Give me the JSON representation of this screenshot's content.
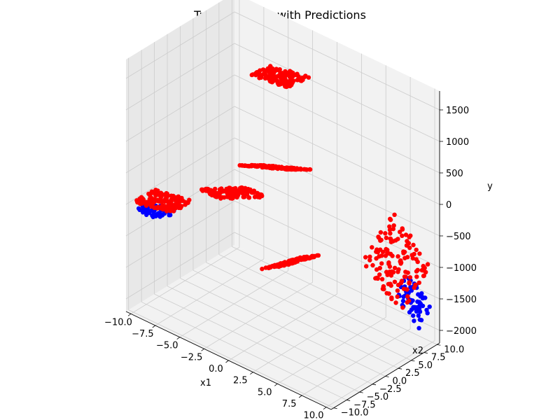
{
  "chart_data": {
    "type": "scatter",
    "projection": "3d",
    "title": "True Test Data with Predictions",
    "xlabel": "x1",
    "ylabel": "x2",
    "zlabel": "y",
    "xlim": [
      -10.5,
      10.5
    ],
    "ylim": [
      -10.5,
      10.5
    ],
    "zlim": [
      -2200,
      1800
    ],
    "x_ticks": [
      "−10.0",
      "−7.5",
      "−5.0",
      "−2.5",
      "0.0",
      "2.5",
      "5.0",
      "7.5",
      "10.0"
    ],
    "y_ticks": [
      "−10.0",
      "−7.5",
      "−5.0",
      "−2.5",
      "0.0",
      "2.5",
      "5.0",
      "7.5",
      "10.0"
    ],
    "z_ticks": [
      "−2000",
      "−1500",
      "−1000",
      "−500",
      "0",
      "500",
      "1000",
      "1500"
    ],
    "grid": true,
    "colors": {
      "true_data": "#0000ff",
      "predictions": "#ff0000",
      "pane": "#f2f2f2",
      "pane_side": "#e8e8e8",
      "grid": "#cccccc"
    },
    "series": [
      {
        "role": "true-test-data",
        "color": "#0000ff",
        "clusters": [
          {
            "x_range": [
              -10,
              -7
            ],
            "y_range": [
              -10,
              -7
            ],
            "z0": -600,
            "dzdx": 30,
            "dzdy": 0
          },
          {
            "x_range": [
              7.5,
              10
            ],
            "y_range": [
              7.5,
              10
            ],
            "z0": -1500,
            "dzdx": -150,
            "dzdy": 90
          }
        ]
      },
      {
        "role": "predictions",
        "color": "#ff0000",
        "clusters": [
          {
            "x_range": [
              -10,
              -6
            ],
            "y_range": [
              -10,
              -6
            ],
            "z0": -450,
            "dzdx": 30,
            "dzdy": 0
          },
          {
            "x_range": [
              -6,
              -2
            ],
            "y_range": [
              5,
              9
            ],
            "z0": 1100,
            "dzdx": 25,
            "dzdy": -8
          },
          {
            "x_range": [
              -3,
              2
            ],
            "y_range": [
              -3,
              2
            ],
            "z0": 300,
            "dzdx": 60,
            "dzdy": -50
          },
          {
            "x_range": [
              -6,
              -1
            ],
            "y_range": [
              -5,
              -1
            ],
            "z0": -200,
            "dzdx": 80,
            "dzdy": -90
          },
          {
            "x_range": [
              1,
              5
            ],
            "y_range": [
              -6,
              -2
            ],
            "z0": -900,
            "dzdx": 120,
            "dzdy": -40
          },
          {
            "x_range": [
              6,
              10
            ],
            "y_range": [
              4,
              10
            ],
            "z0": -900,
            "dzdx": -140,
            "dzdy": 80
          }
        ]
      }
    ]
  }
}
